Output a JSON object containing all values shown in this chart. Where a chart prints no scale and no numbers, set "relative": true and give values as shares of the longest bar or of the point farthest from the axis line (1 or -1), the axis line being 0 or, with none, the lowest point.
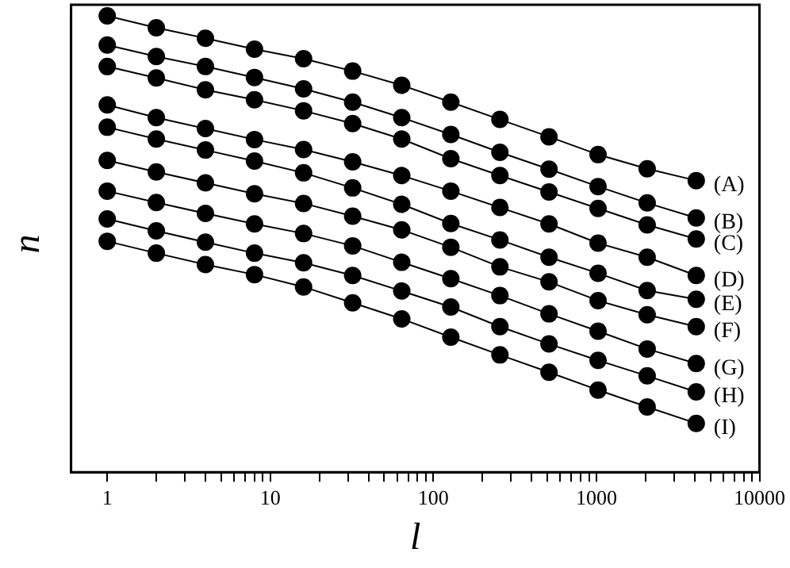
{
  "chart_data": {
    "type": "line",
    "xlabel": "l",
    "ylabel": "n",
    "log": "x",
    "relative": true,
    "marker": "circle",
    "line_style": "solid",
    "grid": false,
    "legend": false,
    "x": [
      1,
      2,
      4,
      8,
      16,
      32,
      64,
      128,
      256,
      512,
      1024,
      2048,
      4096
    ],
    "xlim": [
      0.6,
      10000
    ],
    "xticks": [
      1,
      {
        "value": 2,
        "label": null
      },
      {
        "value": 3,
        "label": null
      },
      {
        "value": 4,
        "label": null
      },
      {
        "value": 5,
        "label": null
      },
      {
        "value": 6,
        "label": null
      },
      {
        "value": 7,
        "label": null
      },
      {
        "value": 8,
        "label": null
      },
      {
        "value": 9,
        "label": null
      },
      10,
      {
        "value": 20,
        "label": null
      },
      {
        "value": 30,
        "label": null
      },
      {
        "value": 40,
        "label": null
      },
      {
        "value": 50,
        "label": null
      },
      {
        "value": 60,
        "label": null
      },
      {
        "value": 70,
        "label": null
      },
      {
        "value": 80,
        "label": null
      },
      {
        "value": 90,
        "label": null
      },
      100,
      {
        "value": 200,
        "label": null
      },
      {
        "value": 300,
        "label": null
      },
      {
        "value": 400,
        "label": null
      },
      {
        "value": 500,
        "label": null
      },
      {
        "value": 600,
        "label": null
      },
      {
        "value": 700,
        "label": null
      },
      {
        "value": 800,
        "label": null
      },
      {
        "value": 900,
        "label": null
      },
      1000,
      {
        "value": 2000,
        "label": null
      },
      {
        "value": 3000,
        "label": null
      },
      {
        "value": 4000,
        "label": null
      },
      {
        "value": 5000,
        "label": null
      },
      {
        "value": 6000,
        "label": null
      },
      {
        "value": 7000,
        "label": null
      },
      {
        "value": 8000,
        "label": null
      },
      {
        "value": 9000,
        "label": null
      },
      10000
    ],
    "series": [
      {
        "name": "(A)",
        "color": "#000000",
        "values": [
          1,
          0.974,
          0.951,
          0.927,
          0.906,
          0.879,
          0.848,
          0.811,
          0.773,
          0.735,
          0.696,
          0.665,
          0.639
        ]
      },
      {
        "name": "(B)",
        "color": "#000000",
        "values": [
          0.936,
          0.911,
          0.889,
          0.865,
          0.84,
          0.811,
          0.777,
          0.74,
          0.701,
          0.664,
          0.626,
          0.59,
          0.557
        ]
      },
      {
        "name": "(C)",
        "color": "#000000",
        "values": [
          0.889,
          0.864,
          0.838,
          0.816,
          0.792,
          0.764,
          0.73,
          0.687,
          0.65,
          0.614,
          0.578,
          0.542,
          0.511
        ]
      },
      {
        "name": "(D)",
        "color": "#000000",
        "values": [
          0.805,
          0.777,
          0.753,
          0.729,
          0.707,
          0.68,
          0.65,
          0.616,
          0.58,
          0.544,
          0.502,
          0.471,
          0.431
        ]
      },
      {
        "name": "(E)",
        "color": "#000000",
        "values": [
          0.756,
          0.73,
          0.706,
          0.682,
          0.656,
          0.623,
          0.587,
          0.545,
          0.509,
          0.471,
          0.436,
          0.398,
          0.379
        ]
      },
      {
        "name": "(F)",
        "color": "#000000",
        "values": [
          0.683,
          0.658,
          0.634,
          0.61,
          0.589,
          0.561,
          0.531,
          0.493,
          0.45,
          0.417,
          0.376,
          0.345,
          0.319
        ]
      },
      {
        "name": "(G)",
        "color": "#000000",
        "values": [
          0.616,
          0.591,
          0.567,
          0.544,
          0.523,
          0.496,
          0.46,
          0.424,
          0.387,
          0.347,
          0.309,
          0.27,
          0.238
        ]
      },
      {
        "name": "(H)",
        "color": "#000000",
        "values": [
          0.555,
          0.529,
          0.504,
          0.48,
          0.459,
          0.431,
          0.397,
          0.362,
          0.319,
          0.281,
          0.245,
          0.211,
          0.176
        ]
      },
      {
        "name": "(I)",
        "color": "#000000",
        "values": [
          0.506,
          0.48,
          0.455,
          0.433,
          0.406,
          0.371,
          0.336,
          0.296,
          0.257,
          0.219,
          0.18,
          0.143,
          0.107
        ]
      }
    ]
  }
}
